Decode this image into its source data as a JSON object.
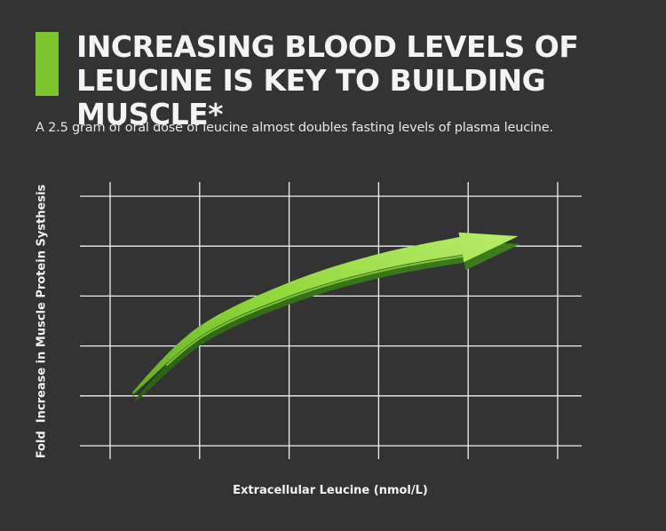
{
  "header": {
    "title_line1": "INCREASING BLOOD LEVELS OF",
    "title_line2": "LEUCINE IS KEY TO BUILDING MUSCLE*",
    "subtitle": "A 2.5 gram of oral dose of leucine almost doubles fasting levels of plasma leucine."
  },
  "colors": {
    "background": "#333333",
    "accent": "#7bc62d",
    "grid": "#f0f0f0",
    "arrow_light": "#a6e052",
    "arrow_mid": "#6fbe2a",
    "arrow_dark": "#2d6a14"
  },
  "chart_data": {
    "type": "line",
    "title": "INCREASING BLOOD LEVELS OF LEUCINE IS KEY TO BUILDING MUSCLE*",
    "subtitle": "A 2.5 gram of oral dose of leucine almost doubles fasting levels of plasma leucine.",
    "xlabel": "Extracellular Leucine (nmol/L)",
    "ylabel": "Fold  Increase in Muscle Protein Systhesis",
    "x_gridlines": 6,
    "y_gridlines": 6,
    "tick_labels": false,
    "grid": true,
    "legend": "none",
    "series": [
      {
        "style": "curved-arrow",
        "x": [
          0.25,
          1.0,
          2.0,
          3.0,
          4.0,
          4.56
        ],
        "y": [
          1.05,
          2.3,
          3.15,
          3.7,
          4.05,
          4.2
        ]
      }
    ]
  }
}
